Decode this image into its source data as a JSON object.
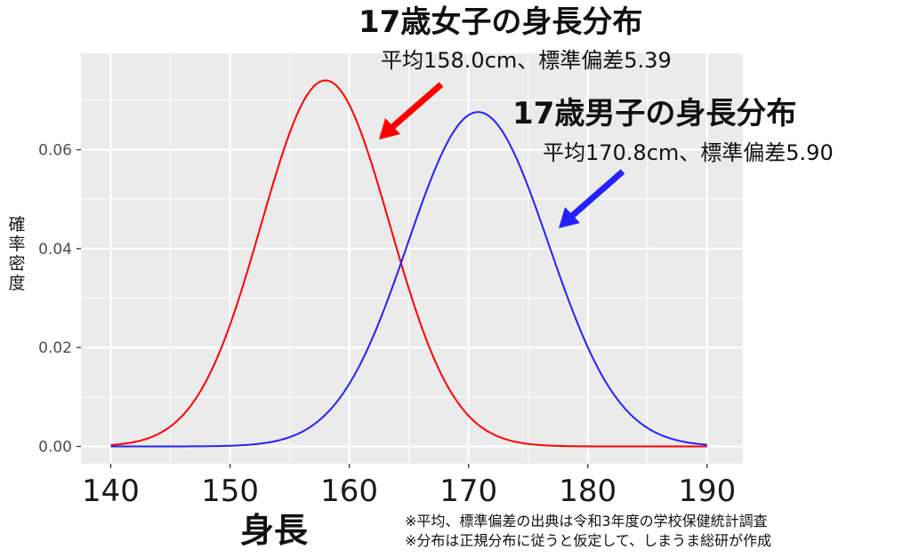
{
  "chart_data": {
    "type": "line",
    "xlabel": "身長",
    "ylabel": "確率密度",
    "xlim": [
      137.5,
      193
    ],
    "ylim": [
      -0.0035,
      0.0795
    ],
    "x_ticks": [
      140,
      150,
      160,
      170,
      180,
      190
    ],
    "y_ticks": [
      0.0,
      0.02,
      0.04,
      0.06
    ],
    "y_tick_labels": [
      "0.00",
      "0.02",
      "0.04",
      "0.06"
    ],
    "x_range": [
      140,
      190
    ],
    "grid": true,
    "legend": "none",
    "series": [
      {
        "label": "female",
        "mean": 158.0,
        "sd": 5.39,
        "color": "#ff0000"
      },
      {
        "label": "male",
        "mean": 170.8,
        "sd": 5.9,
        "color": "#2222ff"
      }
    ],
    "annotations": [
      {
        "title": "17歳女子の身長分布",
        "subtitle": "平均158.0cm、標準偏差5.39",
        "color": "#ff0000"
      },
      {
        "title": "17歳男子の身長分布",
        "subtitle": "平均170.8cm、標準偏差5.90",
        "color": "#2222ff"
      }
    ],
    "notes": [
      "※平均、標準偏差の出典は令和3年度の学校保健統計調査",
      "※分布は正規分布に従うと仮定して、しまうま総研が作成"
    ]
  }
}
